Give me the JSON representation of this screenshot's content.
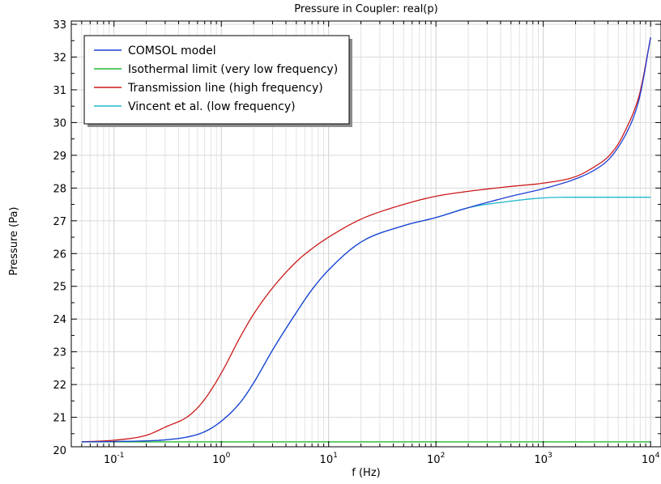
{
  "chart_data": {
    "type": "line",
    "title": "Pressure in Coupler: real(p)",
    "xlabel": "f (Hz)",
    "ylabel": "Pressure (Pa)",
    "xscale": "log",
    "xlim": [
      0.04,
      12500
    ],
    "ylim": [
      20.1,
      33.1
    ],
    "grid": true,
    "legend_position": "top-left",
    "x_ticks": [
      {
        "base": "10",
        "exp": "-1"
      },
      {
        "base": "10",
        "exp": "0"
      },
      {
        "base": "10",
        "exp": "1"
      },
      {
        "base": "10",
        "exp": "2"
      },
      {
        "base": "10",
        "exp": "3"
      },
      {
        "base": "10",
        "exp": "4"
      }
    ],
    "y_ticks": [
      "20",
      "21",
      "22",
      "23",
      "24",
      "25",
      "26",
      "27",
      "28",
      "29",
      "30",
      "31",
      "32",
      "33"
    ],
    "x": [
      0.05,
      0.1,
      0.2,
      0.3,
      0.5,
      0.7,
      1,
      1.5,
      2,
      3,
      5,
      7,
      10,
      20,
      50,
      100,
      200,
      500,
      1000,
      2000,
      3000,
      4000,
      5000,
      6000,
      7000,
      8000,
      10000
    ],
    "series": [
      {
        "name": "COMSOL model",
        "color": "#1f3fd6",
        "values": [
          20.25,
          20.26,
          20.28,
          20.31,
          20.41,
          20.56,
          20.88,
          21.45,
          22.05,
          23.05,
          24.2,
          24.9,
          25.5,
          26.35,
          26.85,
          27.1,
          27.4,
          27.75,
          27.98,
          28.28,
          28.55,
          28.85,
          29.25,
          29.7,
          30.2,
          30.85,
          32.6
        ]
      },
      {
        "name": "Isothermal limit (very low frequency)",
        "color": "#22b832",
        "values": [
          20.25,
          20.25,
          20.25,
          20.25,
          20.25,
          20.25,
          20.25,
          20.25,
          20.25,
          20.25,
          20.25,
          20.25,
          20.25,
          20.25,
          20.25,
          20.25,
          20.25,
          20.25,
          20.25,
          20.25,
          20.25,
          20.25,
          20.25,
          20.25,
          20.25,
          20.25,
          20.25
        ]
      },
      {
        "name": "Transmission line (high frequency)",
        "color": "#cc1a1a",
        "values": [
          20.25,
          20.3,
          20.45,
          20.7,
          21.05,
          21.55,
          22.35,
          23.45,
          24.15,
          24.95,
          25.75,
          26.15,
          26.5,
          27.05,
          27.5,
          27.75,
          27.9,
          28.05,
          28.15,
          28.35,
          28.65,
          28.95,
          29.35,
          29.85,
          30.35,
          30.95,
          32.6
        ]
      },
      {
        "name": "Vincent et al. (low frequency)",
        "color": "#20b8cc",
        "values": [
          20.25,
          20.26,
          20.28,
          20.31,
          20.41,
          20.56,
          20.88,
          21.45,
          22.05,
          23.05,
          24.2,
          24.9,
          25.5,
          26.35,
          26.85,
          27.1,
          27.4,
          27.6,
          27.7,
          27.72,
          27.72,
          27.72,
          27.72,
          27.72,
          27.72,
          27.72,
          27.72
        ]
      }
    ]
  }
}
